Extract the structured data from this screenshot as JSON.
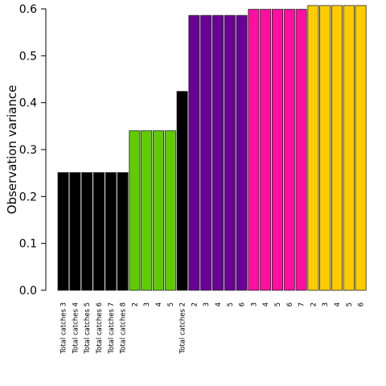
{
  "chart_data": {
    "type": "bar",
    "ylabel": "Observation variance",
    "ylim": [
      0,
      0.6
    ],
    "yticks": [
      "0.0",
      "0.1",
      "0.2",
      "0.3",
      "0.4",
      "0.5",
      "0.6"
    ],
    "categories": [
      "Total catches 3",
      "Total catches 4",
      "Total catches 5",
      "Total catches 6",
      "Total catches 7",
      "Total catches 8",
      "2",
      "3",
      "4",
      "5",
      "Total catches 2",
      "2",
      "3",
      "4",
      "5",
      "6",
      "3",
      "4",
      "5",
      "6",
      "7",
      "2",
      "3",
      "4",
      "5",
      "6"
    ],
    "values": [
      0.251,
      0.251,
      0.251,
      0.251,
      0.251,
      0.251,
      0.34,
      0.34,
      0.34,
      0.34,
      0.424,
      0.586,
      0.586,
      0.586,
      0.586,
      0.586,
      0.599,
      0.599,
      0.599,
      0.599,
      0.599,
      0.607,
      0.607,
      0.607,
      0.607,
      0.607
    ],
    "colors": [
      "#000000",
      "#000000",
      "#000000",
      "#000000",
      "#000000",
      "#000000",
      "#5fcc00",
      "#5fcc00",
      "#5fcc00",
      "#5fcc00",
      "#000000",
      "#6a0096",
      "#6a0096",
      "#6a0096",
      "#6a0096",
      "#6a0096",
      "#ff10a0",
      "#ff10a0",
      "#ff10a0",
      "#ff10a0",
      "#ff10a0",
      "#ffcc00",
      "#ffcc00",
      "#ffcc00",
      "#ffcc00",
      "#ffcc00"
    ],
    "grid": false,
    "legend": "none"
  }
}
